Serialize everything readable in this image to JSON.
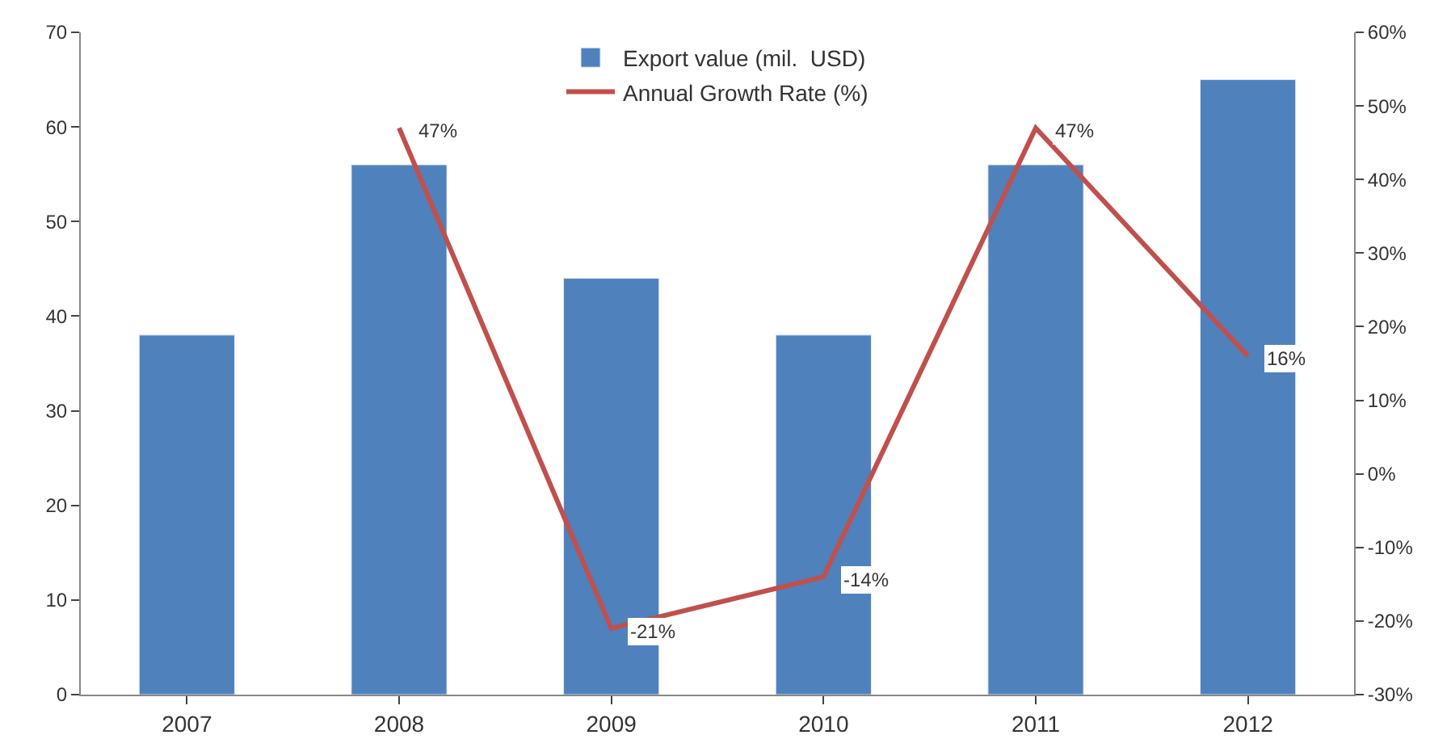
{
  "chart_data": {
    "type": "bar",
    "categories": [
      "2007",
      "2008",
      "2009",
      "2010",
      "2011",
      "2012"
    ],
    "series": [
      {
        "name": "Export value (mil.  USD)",
        "color": "#4f81bd",
        "values": [
          38,
          56,
          44,
          38,
          56,
          65
        ]
      },
      {
        "name": "Annual Growth Rate (%)",
        "type": "line",
        "axis": "y2",
        "color": "#c0504d",
        "values": [
          null,
          47,
          -21,
          -14,
          47,
          16
        ],
        "value_labels": [
          null,
          "47%",
          "-21%",
          "-14%",
          "47%",
          "16%"
        ]
      }
    ],
    "ylim": [
      0,
      70
    ],
    "yticks": [
      0,
      10,
      20,
      30,
      40,
      50,
      60,
      70
    ],
    "y2lim": [
      -30,
      60
    ],
    "y2ticks": [
      {
        "value": -30,
        "label": "-30%"
      },
      {
        "value": -20,
        "label": "-20%"
      },
      {
        "value": -10,
        "label": "-10%"
      },
      {
        "value": 0,
        "label": "0%"
      },
      {
        "value": 10,
        "label": "10%"
      },
      {
        "value": 20,
        "label": "20%"
      },
      {
        "value": 30,
        "label": "30%"
      },
      {
        "value": 40,
        "label": "40%"
      },
      {
        "value": 50,
        "label": "50%"
      },
      {
        "value": 60,
        "label": "60%"
      }
    ],
    "legend": "top",
    "marker": "none",
    "line_style": "solid"
  }
}
